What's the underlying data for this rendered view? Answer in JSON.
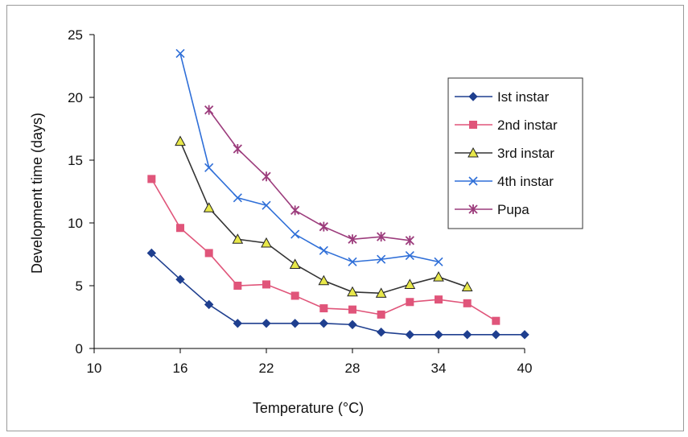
{
  "chart_data": {
    "type": "line",
    "title": "",
    "xlabel": "Temperature (°C)",
    "ylabel": "Development time (days)",
    "xlim": [
      10,
      40
    ],
    "ylim": [
      0,
      25
    ],
    "xticks": [
      10,
      16,
      22,
      28,
      34,
      40
    ],
    "yticks": [
      0,
      5,
      10,
      15,
      20,
      25
    ],
    "grid": false,
    "legend_position": "right",
    "series": [
      {
        "name": "Ist instar",
        "color": "#1f3f8f",
        "marker": "diamond",
        "x": [
          14,
          16,
          18,
          20,
          22,
          24,
          26,
          28,
          30,
          32,
          34,
          36,
          38,
          40
        ],
        "y": [
          7.6,
          5.5,
          3.5,
          2.0,
          2.0,
          2.0,
          2.0,
          1.9,
          1.3,
          1.1,
          1.1,
          1.1,
          1.1,
          1.1
        ]
      },
      {
        "name": "2nd instar",
        "color": "#e0557a",
        "marker": "square",
        "x": [
          14,
          16,
          18,
          20,
          22,
          24,
          26,
          28,
          30,
          32,
          34,
          36,
          38
        ],
        "y": [
          13.5,
          9.6,
          7.6,
          5.0,
          5.1,
          4.2,
          3.2,
          3.1,
          2.7,
          3.7,
          3.9,
          3.6,
          2.2
        ]
      },
      {
        "name": "3rd instar",
        "color": "#333333",
        "marker": "triangle",
        "x": [
          16,
          18,
          20,
          22,
          24,
          26,
          28,
          30,
          32,
          34,
          36
        ],
        "y": [
          16.5,
          11.2,
          8.7,
          8.4,
          6.7,
          5.4,
          4.5,
          4.4,
          5.1,
          5.7,
          4.9
        ]
      },
      {
        "name": "4th instar",
        "color": "#2f6fd8",
        "marker": "x",
        "x": [
          16,
          18,
          20,
          22,
          24,
          26,
          28,
          30,
          32,
          34
        ],
        "y": [
          23.5,
          14.4,
          12.0,
          11.4,
          9.1,
          7.8,
          6.9,
          7.1,
          7.4,
          6.9
        ]
      },
      {
        "name": "Pupa",
        "color": "#9c3c7c",
        "marker": "star",
        "x": [
          18,
          20,
          22,
          24,
          26,
          28,
          30,
          32
        ],
        "y": [
          19.0,
          15.9,
          13.7,
          11.0,
          9.7,
          8.7,
          8.9,
          8.6
        ]
      }
    ]
  }
}
